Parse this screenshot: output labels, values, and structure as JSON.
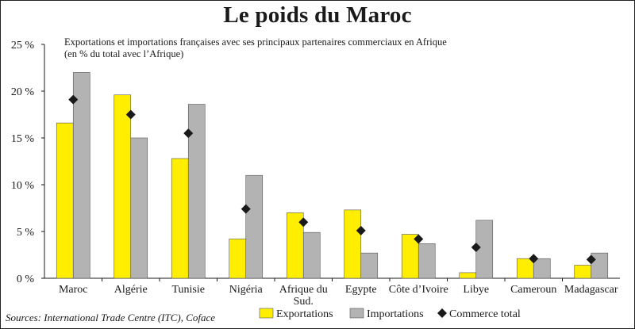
{
  "title": "Le poids du Maroc",
  "subtitle_line1": "Exportations et importations françaises avec ses principaux partenaires commerciaux en Afrique",
  "subtitle_line2": "(en % du total avec l’Afrique)",
  "source": "Sources: International Trade Centre (ITC), Coface",
  "colors": {
    "exportations": "#ffee00",
    "importations": "#b3b3b3",
    "commerce": "#1a1a1a",
    "axis": "#1a1a1a"
  },
  "legend": [
    {
      "key": "exportations",
      "label": "Exportations",
      "marker": "square"
    },
    {
      "key": "importations",
      "label": "Importations",
      "marker": "square"
    },
    {
      "key": "commerce",
      "label": "Commerce total",
      "marker": "diamond"
    }
  ],
  "chart_data": {
    "type": "bar",
    "categories": [
      [
        "Maroc"
      ],
      [
        "Algérie"
      ],
      [
        "Tunisie"
      ],
      [
        "Nigéria"
      ],
      [
        "Afrique du",
        "Sud."
      ],
      [
        "Egypte"
      ],
      [
        "Côte d’Ivoire"
      ],
      [
        "Libye"
      ],
      [
        "Cameroun"
      ],
      [
        "Madagascar"
      ]
    ],
    "series": [
      {
        "name": "Exportations",
        "key": "exportations",
        "kind": "bar",
        "values": [
          16.6,
          19.6,
          12.8,
          4.2,
          7.0,
          7.3,
          4.7,
          0.6,
          2.1,
          1.4
        ]
      },
      {
        "name": "Importations",
        "key": "importations",
        "kind": "bar",
        "values": [
          22.0,
          15.0,
          18.6,
          11.0,
          4.9,
          2.7,
          3.7,
          6.2,
          2.1,
          2.7
        ]
      },
      {
        "name": "Commerce total",
        "key": "commerce",
        "kind": "marker",
        "values": [
          19.1,
          17.5,
          15.5,
          7.4,
          6.0,
          5.1,
          4.2,
          3.3,
          2.1,
          2.0
        ]
      }
    ],
    "ylim": [
      0,
      25
    ],
    "yticks": [
      0,
      5,
      10,
      15,
      20,
      25
    ],
    "ytick_labels": [
      "0 %",
      "5 %",
      "10 %",
      "15 %",
      "20 %",
      "25 %"
    ],
    "xlabel": "",
    "ylabel": "",
    "grid": false,
    "legend_position": "bottom"
  }
}
